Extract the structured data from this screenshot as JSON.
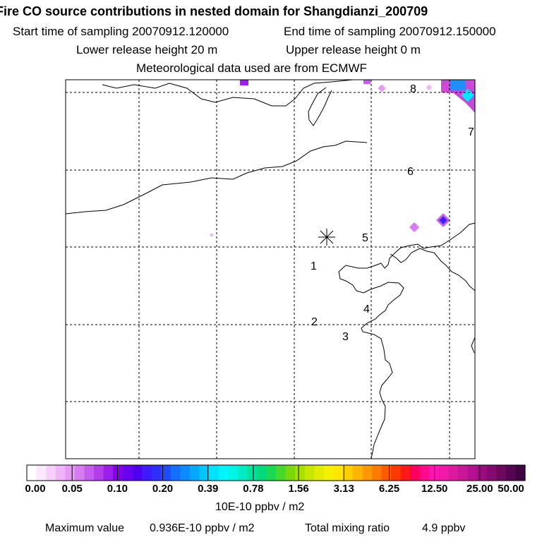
{
  "header": {
    "title": "Fire CO source contributions in nested domain for Shangdianzi_200709",
    "start_time": "Start time of sampling 20070912.120000",
    "end_time": "End time of sampling 20070912.150000",
    "lower_release": "Lower release height   20 m",
    "upper_release": "Upper release height    0 m",
    "met_data": "Meteorological data used are from ECMWF"
  },
  "map": {
    "site_marker": "*",
    "labels": [
      "1",
      "2",
      "3",
      "4",
      "5",
      "6",
      "7",
      "8"
    ]
  },
  "colorbar": {
    "ticks": [
      "0.00",
      "0.05",
      "0.10",
      "0.20",
      "0.39",
      "0.78",
      "1.56",
      "3.13",
      "6.25",
      "12.50",
      "25.00",
      "50.00"
    ],
    "colors": [
      "#ffffff",
      "#fce8ff",
      "#f7d0fb",
      "#f0b4f8",
      "#e699f5",
      "#d77cf2",
      "#c45cf0",
      "#b23ded",
      "#9b1eea",
      "#8400e6",
      "#6a00f0",
      "#4f00f0",
      "#3f1cff",
      "#2e2eff",
      "#1f4bff",
      "#1170ff",
      "#0a8cff",
      "#06a8ff",
      "#00c8ff",
      "#00e0ff",
      "#00f5ff",
      "#00f4e6",
      "#00ecc3",
      "#00e39f",
      "#00da7b",
      "#18d94f",
      "#46d82a",
      "#78d80a",
      "#a8de00",
      "#c8e600",
      "#e1ec00",
      "#f4f000",
      "#ffe600",
      "#ffcf00",
      "#ffb400",
      "#ff9800",
      "#ff7c00",
      "#ff5c00",
      "#ff3a00",
      "#ff1a1a",
      "#ff0060",
      "#ff0a8a",
      "#ff14b4",
      "#f01aa8",
      "#dc1aa0",
      "#c81898",
      "#b41290",
      "#9c0c80",
      "#840a70",
      "#6c085e",
      "#560650",
      "#3e0440"
    ],
    "units": "10E-10 ppbv / m2"
  },
  "footer": {
    "max_label": "Maximum value",
    "max_value": "0.936E-10 ppbv / m2",
    "total_label": "Total mixing ratio",
    "total_value": "4.9 ppbv"
  }
}
